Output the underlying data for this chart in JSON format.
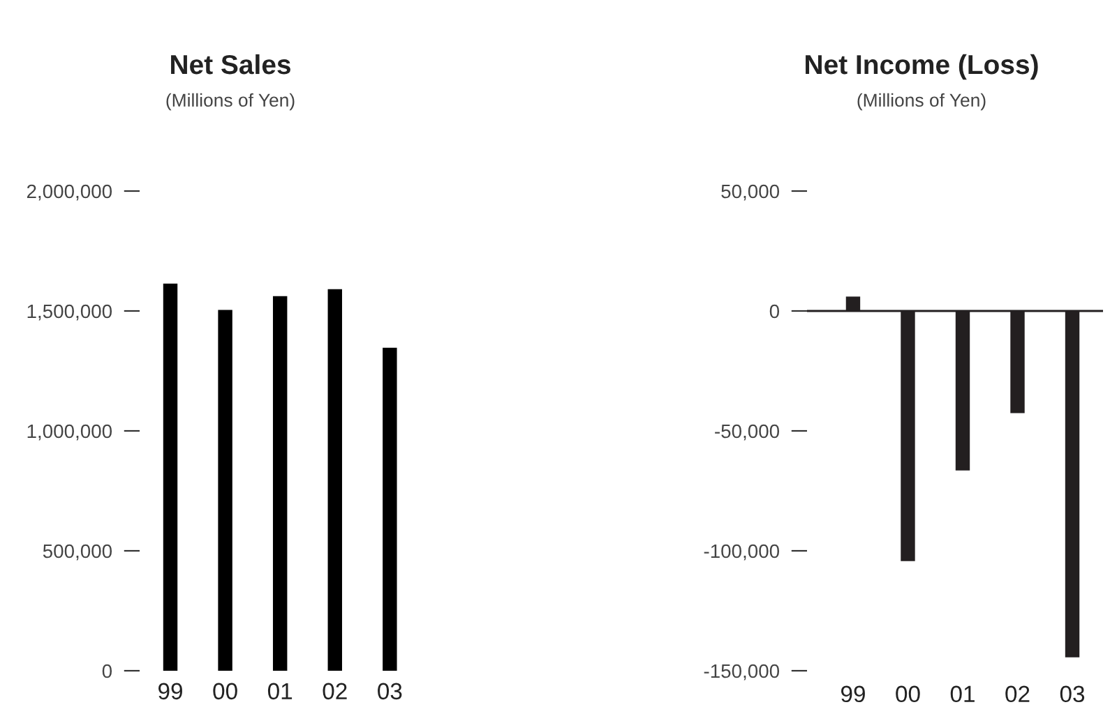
{
  "chart_data": [
    {
      "type": "bar",
      "title": "Net Sales",
      "subtitle": "(Millions of Yen)",
      "categories": [
        "99",
        "00",
        "01",
        "02",
        "03"
      ],
      "values": [
        1614000,
        1504000,
        1562000,
        1591000,
        1347000
      ],
      "color": "#000000",
      "ylim": [
        0,
        2000000
      ],
      "yticks": [
        {
          "value": 0,
          "label": "0"
        },
        {
          "value": 500000,
          "label": "500,000"
        },
        {
          "value": 1000000,
          "label": "1,000,000"
        },
        {
          "value": 1500000,
          "label": "1,500,000"
        },
        {
          "value": 2000000,
          "label": "2,000,000"
        }
      ],
      "grid": false
    },
    {
      "type": "bar",
      "title": "Net Income (Loss)",
      "subtitle": "(Millions of Yen)",
      "categories": [
        "99",
        "00",
        "01",
        "02",
        "03"
      ],
      "values": [
        6000,
        -104300,
        -66500,
        -42600,
        -144400
      ],
      "color": "#231f20",
      "ylim": [
        -150000,
        50000
      ],
      "yticks": [
        {
          "value": -150000,
          "label": "-150,000"
        },
        {
          "value": -100000,
          "label": "-100,000"
        },
        {
          "value": -50000,
          "label": "-50,000"
        },
        {
          "value": 0,
          "label": "0"
        },
        {
          "value": 50000,
          "label": "50,000"
        }
      ],
      "ref_lines": [
        {
          "axis": "y",
          "value": 0,
          "color": "#231f20"
        }
      ]
    }
  ]
}
